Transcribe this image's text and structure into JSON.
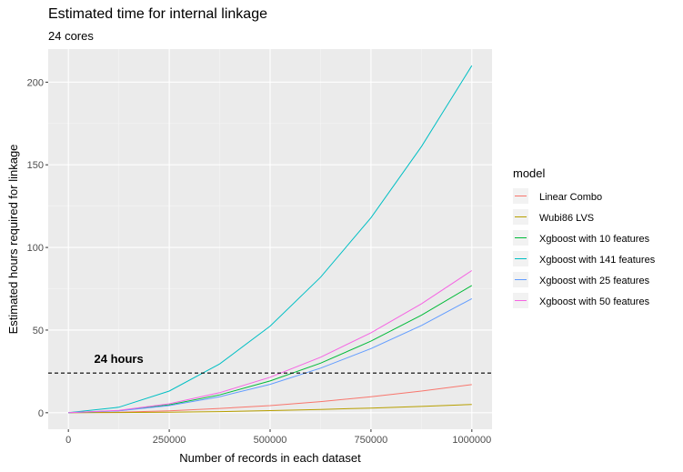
{
  "chart_data": {
    "type": "line",
    "title": "Estimated time for internal linkage",
    "subtitle": "24 cores",
    "xlabel": "Number of records in each dataset",
    "ylabel": "Estimated hours required for linkage",
    "xlim": [
      -50000,
      1050000
    ],
    "ylim": [
      -10,
      220
    ],
    "x_ticks": [
      0,
      250000,
      500000,
      750000,
      1000000
    ],
    "x_tick_labels": [
      "0",
      "250000",
      "500000",
      "750000",
      "1000000"
    ],
    "y_ticks": [
      0,
      50,
      100,
      150,
      200
    ],
    "y_tick_labels": [
      "0",
      "50",
      "100",
      "150",
      "200"
    ],
    "grid": true,
    "legend_title": "model",
    "legend_position": "right",
    "x": [
      0,
      125000,
      250000,
      375000,
      500000,
      625000,
      750000,
      875000,
      1000000
    ],
    "series": [
      {
        "name": "Linear Combo",
        "color": "#F8766D",
        "values": [
          0,
          0.3,
          1.1,
          2.6,
          4.3,
          6.7,
          9.7,
          13.1,
          17
        ]
      },
      {
        "name": "Wubi86 LVS",
        "color": "#B79F00",
        "values": [
          0,
          0.1,
          0.3,
          0.7,
          1.3,
          2.0,
          2.8,
          3.8,
          5
        ]
      },
      {
        "name": "Xgboost with 10 features",
        "color": "#00BA38",
        "values": [
          0,
          1.2,
          4.8,
          10.8,
          19.2,
          30,
          43.3,
          59,
          77
        ]
      },
      {
        "name": "Xgboost with 141 features",
        "color": "#00BFC4",
        "values": [
          0,
          3.3,
          13.1,
          29.5,
          52.4,
          82,
          118,
          161,
          210
        ]
      },
      {
        "name": "Xgboost with 25 features",
        "color": "#619CFF",
        "values": [
          0,
          1.1,
          4.3,
          9.7,
          17.2,
          27,
          38.8,
          52.8,
          69
        ]
      },
      {
        "name": "Xgboost with 50 features",
        "color": "#F564E3",
        "values": [
          0,
          1.4,
          5.4,
          12.1,
          21.5,
          33.6,
          48.4,
          65.9,
          86
        ]
      }
    ],
    "reference_line": {
      "y": 24,
      "style": "dashed",
      "label": "24 hours",
      "label_x": 125000
    }
  }
}
